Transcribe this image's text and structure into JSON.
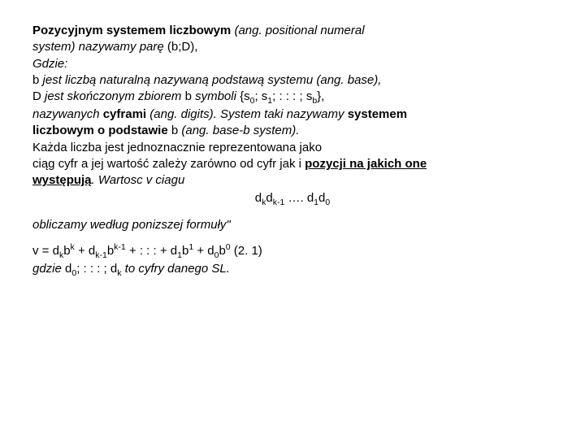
{
  "line1a": "Pozycyjnym systemem liczbowym",
  "line1b": " (ang. positional numeral",
  "line2a": "system) nazywamy parę ",
  "line2b": "(b;D),",
  "line3": "Gdzie:",
  "line4a": "b ",
  "line4b": "jest liczbą naturalną nazywaną podstawą systemu (ang. base),",
  "line5a": "D ",
  "line5b": "jest skończonym zbiorem ",
  "line5c": "b ",
  "line5d": "symboli ",
  "line5e": "{s",
  "line5f": "0",
  "line5g": "; s",
  "line5h": "1",
  "line5i": "; : : : ; s",
  "line5j": "b",
  "line5k": "},",
  "line6a": "nazywanych ",
  "line6b": "cyframi ",
  "line6c": "(ang. digits). System taki nazywamy ",
  "line6d": "systemem",
  "line7a": "liczbowym o podstawie ",
  "line7b": "b ",
  "line7c": "(ang. base-b system).",
  "line8": "Każda liczba jest jednoznacznie reprezentowana jako",
  "line9a": "ciąg cyfr a jej wartość zależy zarówno od cyfr jak i ",
  "line9b": "pozycji na jakich one",
  "line10a": "występują",
  "line10b": ". Wartosc v ciagu",
  "formula_d": "d",
  "formula_k": "k",
  "formula_km1": "k-1",
  "formula_dots": " …. ",
  "formula_1": "1",
  "formula_0": "0",
  "line11": "obliczamy według ponizszej formuły\"",
  "eq_v": "v = d",
  "eq_b": "b",
  "eq_plus": " + d",
  "eq_dots": " + : : : + d",
  "eq_end": " (2. 1)",
  "line12a": "gdzie ",
  "line12b": "d",
  "line12c": "; : : : ; d",
  "line12d": " to cyfry danego SL."
}
